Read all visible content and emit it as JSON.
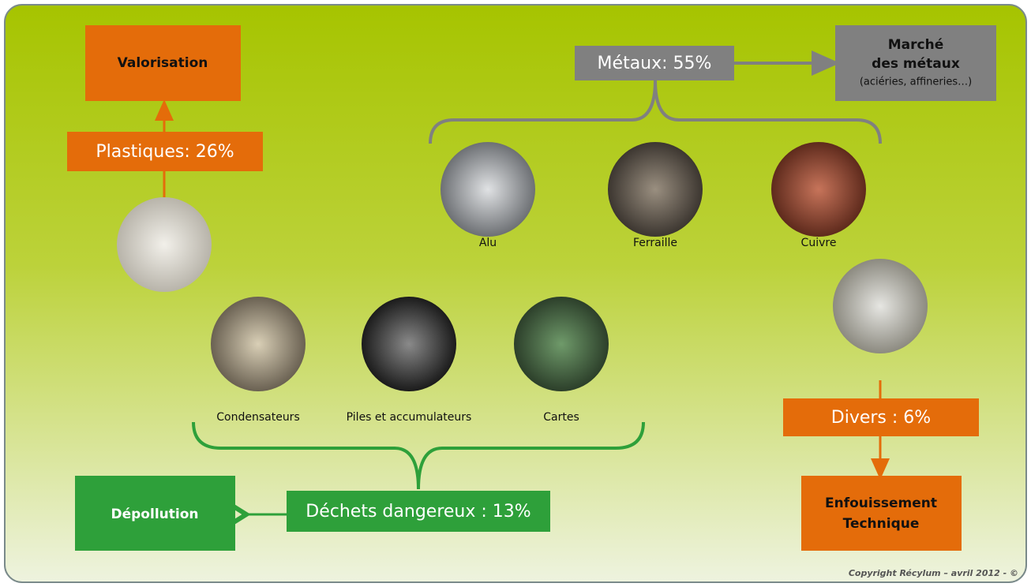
{
  "nodes": {
    "valorisation": "Valorisation",
    "plastiques": "Plastiques: 26%",
    "metaux": "Métaux: 55%",
    "marche": [
      "Marché",
      "des métaux",
      "(aciéries, affineries…)"
    ],
    "alu": "Alu",
    "ferraille": "Ferraille",
    "cuivre": "Cuivre",
    "condensateurs": "Condensateurs",
    "piles": "Piles et accumulateurs",
    "cartes": "Cartes",
    "dechets": "Déchets dangereux : 13%",
    "depollution": "Dépollution",
    "divers": "Divers : 6%",
    "enfouissement": [
      "Enfouissement",
      "Technique"
    ]
  },
  "copyright": "Copyright Récylum  – avril 2012 - ©"
}
